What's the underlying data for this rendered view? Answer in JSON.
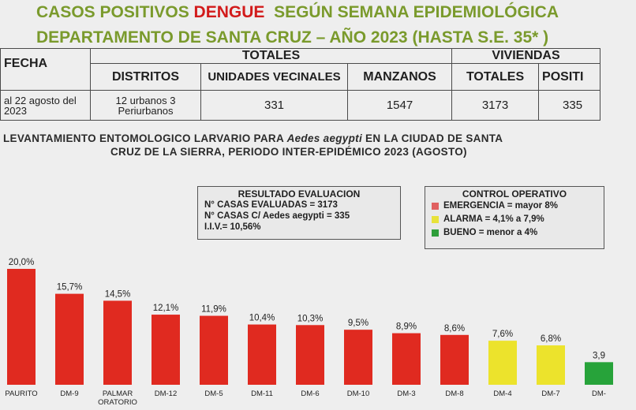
{
  "header": {
    "title_part1": "CASOS POSITIVOS ",
    "title_highlight": "DENGUE",
    "title_part2": "  SEGÚN SEMANA EPIDEMIOLÓGICA",
    "subtitle": "DEPARTAMENTO DE SANTA CRUZ – AÑO 2023 (HASTA S.E. 35* )"
  },
  "summary_table": {
    "fecha_header": "FECHA",
    "totales_header": "TOTALES",
    "viviendas_header": "VIVIENDAS",
    "col_distritos": "DISTRITOS",
    "col_unidades": "UNIDADES VECINALES",
    "col_manzanos": "MANZANOS",
    "col_totales": "TOTALES",
    "col_positivas": "POSITI",
    "fecha_value": "al 22 agosto del 2023",
    "distritos_value": "12 urbanos 3 Periurbanos",
    "unidades_value": "331",
    "manzanos_value": "1547",
    "totales_value": "3173",
    "positivas_value": "335"
  },
  "levantamiento": {
    "line1_a": "LEVANTAMIENTO ENTOMOLOGICO LARVARIO  PARA ",
    "line1_italic": "Aedes aegypti",
    "line1_b": " EN LA CIUDAD DE SANTA",
    "line2": "CRUZ DE LA SIERRA,  PERIODO INTER-EPIDÉMICO 2023 (AGOSTO)"
  },
  "resultado": {
    "title": "RESULTADO EVALUACION",
    "line1": "N° CASAS EVALUADAS = 3173",
    "line2": "N° CASAS C/ Aedes aegypti = 335",
    "line3": "I.I.V.= 10,56%"
  },
  "control": {
    "title": "CONTROL OPERATIVO",
    "items": [
      {
        "label": "EMERGENCIA = mayor 8%",
        "color": "#e06060"
      },
      {
        "label": "ALARMA = 4,1% a 7,9%",
        "color": "#e8e23a"
      },
      {
        "label": "BUENO = menor a 4%",
        "color": "#2e9e3a"
      }
    ]
  },
  "chart_data": {
    "type": "bar",
    "categories": [
      "PAURITO",
      "DM-9",
      "PALMAR ORATORIO",
      "DM-12",
      "DM-5",
      "DM-11",
      "DM-6",
      "DM-10",
      "DM-3",
      "DM-8",
      "DM-4",
      "DM-7",
      "DM-"
    ],
    "values": [
      20.0,
      15.7,
      14.5,
      12.1,
      11.9,
      10.4,
      10.3,
      9.5,
      8.9,
      8.6,
      7.6,
      6.8,
      3.9
    ],
    "value_labels": [
      "20,0%",
      "15,7%",
      "14,5%",
      "12,1%",
      "11,9%",
      "10,4%",
      "10,3%",
      "9,5%",
      "8,9%",
      "8,6%",
      "7,6%",
      "6,8%",
      "3,9"
    ],
    "bar_colors": [
      "#e02a20",
      "#e02a20",
      "#e02a20",
      "#e02a20",
      "#e02a20",
      "#e02a20",
      "#e02a20",
      "#e02a20",
      "#e02a20",
      "#e02a20",
      "#ece32c",
      "#ece32c",
      "#27a33a"
    ],
    "ylim": [
      0,
      20
    ]
  }
}
